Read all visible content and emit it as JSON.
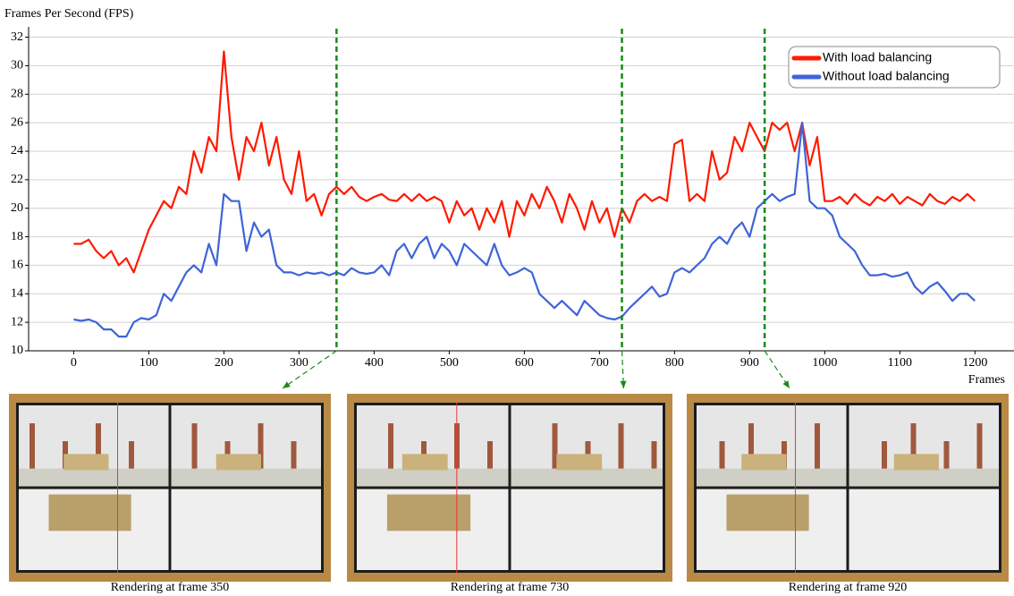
{
  "chart_data": {
    "type": "line",
    "ylabel": "Frames Per Second (FPS)",
    "xlabel": "Frames",
    "x": [
      0,
      10,
      20,
      30,
      40,
      50,
      60,
      70,
      80,
      90,
      100,
      110,
      120,
      130,
      140,
      150,
      160,
      170,
      180,
      190,
      200,
      210,
      220,
      230,
      240,
      250,
      260,
      270,
      280,
      290,
      300,
      310,
      320,
      330,
      340,
      350,
      360,
      370,
      380,
      390,
      400,
      410,
      420,
      430,
      440,
      450,
      460,
      470,
      480,
      490,
      500,
      510,
      520,
      530,
      540,
      550,
      560,
      570,
      580,
      590,
      600,
      610,
      620,
      630,
      640,
      650,
      660,
      670,
      680,
      690,
      700,
      710,
      720,
      730,
      740,
      750,
      760,
      770,
      780,
      790,
      800,
      810,
      820,
      830,
      840,
      850,
      860,
      870,
      880,
      890,
      900,
      910,
      920,
      930,
      940,
      950,
      960,
      970,
      980,
      990,
      1000,
      1010,
      1020,
      1030,
      1040,
      1050,
      1060,
      1070,
      1080,
      1090,
      1100,
      1110,
      1120,
      1130,
      1140,
      1150,
      1160,
      1170,
      1180,
      1190,
      1200
    ],
    "series": [
      {
        "name": "With load balancing",
        "color": "#ff1a00",
        "values": [
          17.5,
          17.5,
          17.8,
          17,
          16.5,
          17,
          16,
          16.5,
          15.5,
          17,
          18.5,
          19.5,
          20.5,
          20,
          21.5,
          21,
          24,
          22.5,
          25,
          24,
          31,
          25,
          22,
          25,
          24,
          26,
          23,
          25,
          22,
          21,
          24,
          20.5,
          21,
          19.5,
          21,
          21.5,
          21,
          21.5,
          20.8,
          20.5,
          20.8,
          21,
          20.6,
          20.5,
          21,
          20.5,
          21,
          20.5,
          20.8,
          20.5,
          19,
          20.5,
          19.5,
          20,
          18.5,
          20,
          19,
          20.5,
          18,
          20.5,
          19.5,
          21,
          20,
          21.5,
          20.5,
          19,
          21,
          20,
          18.5,
          20.5,
          19,
          20,
          18,
          20,
          19,
          20.5,
          21,
          20.5,
          20.8,
          20.5,
          24.5,
          24.8,
          20.5,
          21,
          20.5,
          24,
          22,
          22.5,
          25,
          24,
          26,
          25,
          24,
          26,
          25.5,
          26,
          24,
          26,
          23,
          25,
          20.5,
          20.5,
          20.8,
          20.3,
          21,
          20.5,
          20.2,
          20.8,
          20.5,
          21,
          20.3,
          20.8,
          20.5,
          20.2,
          21,
          20.5,
          20.3,
          20.8,
          20.5,
          21,
          20.5
        ]
      },
      {
        "name": "Without load balancing",
        "color": "#3e64d8",
        "values": [
          12.2,
          12.1,
          12.2,
          12,
          11.5,
          11.5,
          11,
          11,
          12,
          12.3,
          12.2,
          12.5,
          14,
          13.5,
          14.5,
          15.5,
          16,
          15.5,
          17.5,
          16,
          21,
          20.5,
          20.5,
          17,
          19,
          18,
          18.5,
          16,
          15.5,
          15.5,
          15.3,
          15.5,
          15.4,
          15.5,
          15.3,
          15.5,
          15.3,
          15.8,
          15.5,
          15.4,
          15.5,
          16,
          15.3,
          17,
          17.5,
          16.5,
          17.5,
          18,
          16.5,
          17.5,
          17,
          16,
          17.5,
          17,
          16.5,
          16,
          17.5,
          16,
          15.3,
          15.5,
          15.8,
          15.5,
          14,
          13.5,
          13,
          13.5,
          13,
          12.5,
          13.5,
          13,
          12.5,
          12.3,
          12.2,
          12.4,
          13,
          13.5,
          14,
          14.5,
          13.8,
          14,
          15.5,
          15.8,
          15.5,
          16,
          16.5,
          17.5,
          18,
          17.5,
          18.5,
          19,
          18,
          20,
          20.5,
          21,
          20.5,
          20.8,
          21,
          26,
          20.5,
          20,
          20,
          19.5,
          18,
          17.5,
          17,
          16,
          15.3,
          15.3,
          15.4,
          15.2,
          15.3,
          15.5,
          14.5,
          14,
          14.5,
          14.8,
          14.2,
          13.5,
          14,
          14,
          13.5
        ]
      }
    ],
    "xlim": [
      -60,
      1252
    ],
    "xticks": [
      0,
      100,
      200,
      300,
      400,
      500,
      600,
      700,
      800,
      900,
      1000,
      1100,
      1200
    ],
    "ylim": [
      10,
      32.6
    ],
    "yticks": [
      10,
      12,
      14,
      16,
      18,
      20,
      22,
      24,
      26,
      28,
      30,
      32
    ],
    "grid": true,
    "legend": "upper right",
    "highlight_frames": [
      350,
      730,
      920
    ],
    "highlight_color": "#1a8a1a"
  },
  "panels": [
    {
      "caption": "Rendering at frame 350"
    },
    {
      "caption": "Rendering at frame 730"
    },
    {
      "caption": "Rendering at frame 920"
    }
  ]
}
